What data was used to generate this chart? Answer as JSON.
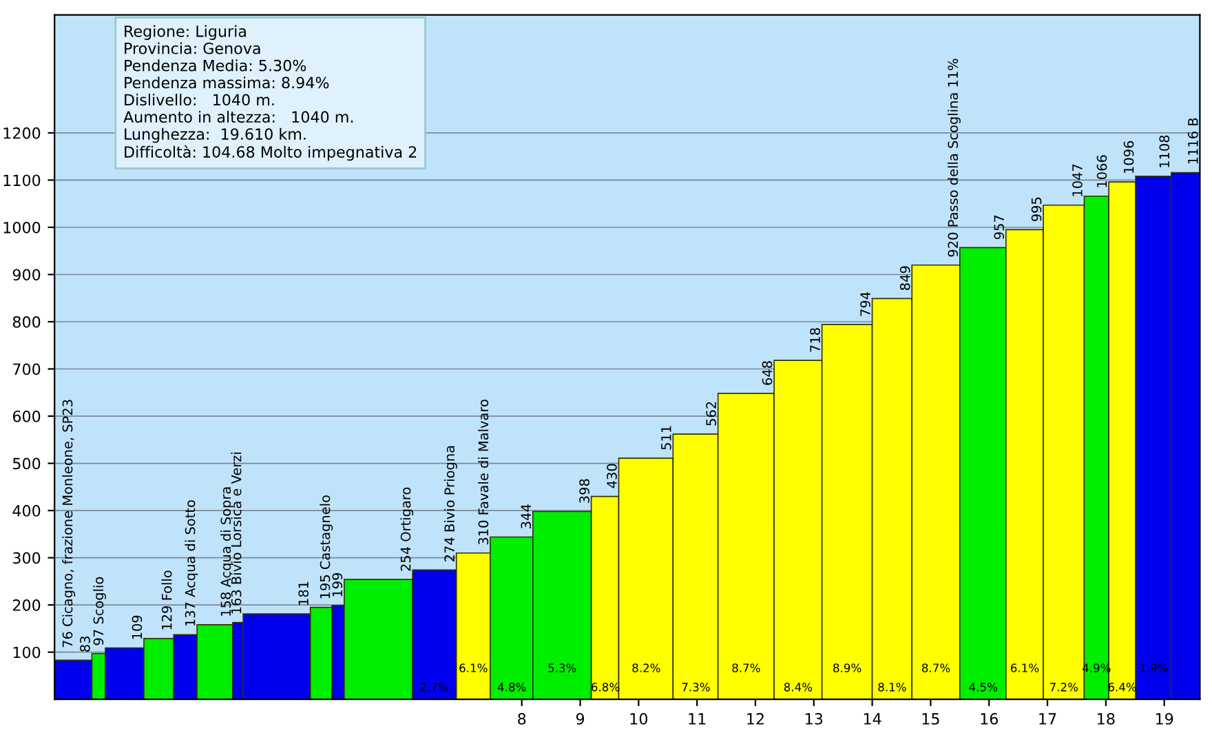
{
  "chart_data": {
    "type": "histogram",
    "bins": [
      0,
      0.64,
      0.87,
      1.53,
      2.04,
      2.44,
      3.05,
      3.23,
      4.38,
      4.75,
      4.96,
      6.13,
      6.88,
      7.46,
      8.19,
      9.19,
      9.66,
      10.59,
      11.36,
      12.32,
      13.14,
      14.0,
      14.68,
      15.5,
      16.29,
      16.93,
      17.63,
      18.05,
      18.51,
      19.12,
      19.61
    ],
    "values": [
      83,
      97,
      109,
      129,
      137,
      158,
      163,
      181,
      195,
      199,
      254,
      274,
      310,
      344,
      398,
      430,
      511,
      562,
      648,
      718,
      794,
      849,
      920,
      957,
      995,
      1047,
      1066,
      1096,
      1108,
      1116
    ],
    "colors": [
      "#0000ee",
      "#00ee00",
      "#0000ee",
      "#00ee00",
      "#0000ee",
      "#00ee00",
      "#0000ee",
      "#0000ee",
      "#00ee00",
      "#0000ee",
      "#00ee00",
      "#0000ee",
      "#ffff00",
      "#00ee00",
      "#00ee00",
      "#ffff00",
      "#ffff00",
      "#ffff00",
      "#ffff00",
      "#ffff00",
      "#ffff00",
      "#ffff00",
      "#ffff00",
      "#00ee00",
      "#ffff00",
      "#ffff00",
      "#00ee00",
      "#ffff00",
      "#0000ee",
      "#0000ee"
    ],
    "value_labels": [
      "83",
      "97 Scoglio",
      "109",
      "129 Follo",
      "137 Acqua di Sotto",
      "158 Acqua di Sopra",
      "163 Bivio Lorsica e Verzi",
      "181",
      "195 Castagnelo",
      "199",
      "254 Ortigaro",
      "274 Bivio Priogna",
      "310 Favale di Malvaro",
      "344",
      "398",
      "430",
      "511",
      "562",
      "648",
      "718",
      "794",
      "849",
      "920 Passo della Scoglina 11%",
      "957",
      "995",
      "1047",
      "1066",
      "1096",
      "1108",
      "1116 B"
    ],
    "xlim": [
      0,
      19.61
    ],
    "xticks": [
      8,
      9,
      10,
      11,
      12,
      13,
      14,
      15,
      16,
      17,
      18,
      19
    ],
    "ylim": [
      0,
      1450
    ],
    "yticks": [
      100,
      200,
      300,
      400,
      500,
      600,
      700,
      800,
      900,
      1000,
      1100,
      1200
    ],
    "grid": "y",
    "annotations": [
      "Regione: Liguria",
      "Provincia: Genova",
      "Pendenza Media: 5.30%",
      "Pendenza massima: 8.94%",
      "Dislivello:   1040 m.",
      "Aumento in altezza:   1040 m.",
      "Lunghezza:  19.610 km.",
      "Difficoltà: 104.68 Molto impegnativa 2",
      {
        "text": "76 Cicagno, frazione Monleone, SP23",
        "x": 0,
        "y": 76
      },
      {
        "text": "2.7%",
        "x": 6.5,
        "y": 0
      },
      {
        "text": "6.1%",
        "x": 7.17,
        "y": 0
      },
      {
        "text": "4.8%",
        "x": 7.83,
        "y": 0
      },
      {
        "text": "5.3%",
        "x": 8.69,
        "y": 0
      },
      {
        "text": "6.8%",
        "x": 9.43,
        "y": 0
      },
      {
        "text": "8.2%",
        "x": 10.13,
        "y": 0
      },
      {
        "text": "7.3%",
        "x": 10.98,
        "y": 0
      },
      {
        "text": "8.7%",
        "x": 11.84,
        "y": 0
      },
      {
        "text": "8.4%",
        "x": 12.73,
        "y": 0
      },
      {
        "text": "8.9%",
        "x": 13.57,
        "y": 0
      },
      {
        "text": "8.1%",
        "x": 14.34,
        "y": 0
      },
      {
        "text": "8.7%",
        "x": 15.09,
        "y": 0
      },
      {
        "text": "4.5%",
        "x": 15.9,
        "y": 0
      },
      {
        "text": "6.1%",
        "x": 16.61,
        "y": 0
      },
      {
        "text": "7.2%",
        "x": 17.28,
        "y": 0
      },
      {
        "text": "4.9%",
        "x": 17.84,
        "y": 0
      },
      {
        "text": "6.4%",
        "x": 18.28,
        "y": 0
      },
      {
        "text": "1.9%",
        "x": 18.82,
        "y": 0
      }
    ]
  }
}
